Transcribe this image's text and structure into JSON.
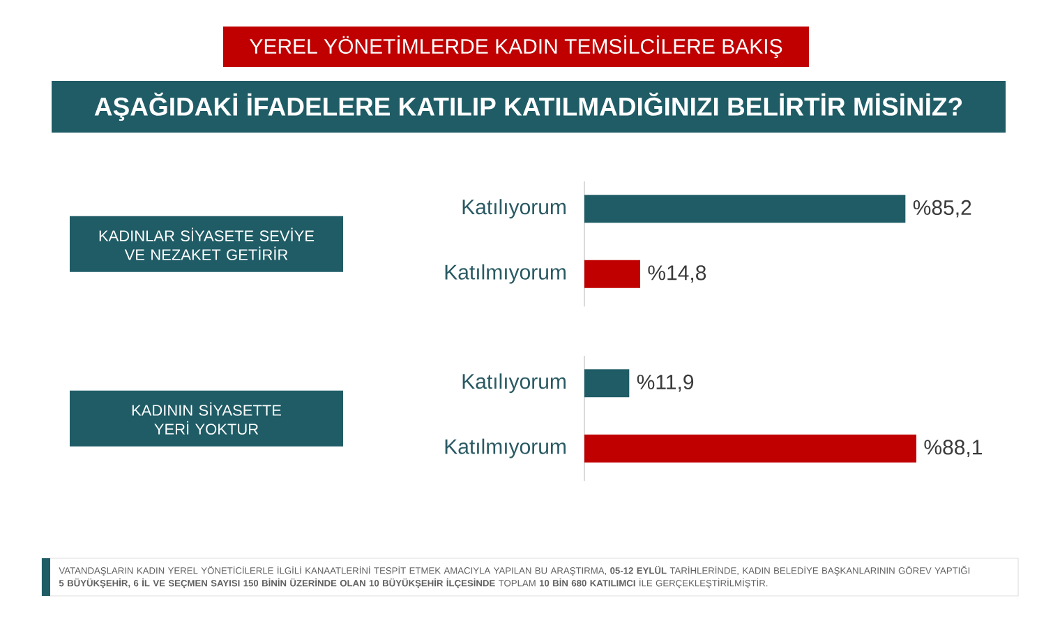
{
  "chart_data": [
    {
      "type": "bar",
      "orientation": "horizontal",
      "title": "YEREL YÖNETİMLERDE KADIN TEMSİLCİLERE BAKIŞ",
      "subtitle": "AŞAĞIDAKİ İFADELERE KATILIP KATILMADIĞINIZI BELİRTİR MİSİNİZ?",
      "ylabel": "KADINLAR SİYASETE SEVİYE VE NEZAKET GETİRİR",
      "categories": [
        "Katılıyorum",
        "Katılmıyorum"
      ],
      "values": [
        85.2,
        14.8
      ],
      "colors": [
        "#1f5c66",
        "#c00000"
      ],
      "value_labels": [
        "%85,2",
        "%14,8"
      ],
      "tick_labels": "y"
    },
    {
      "type": "bar",
      "orientation": "horizontal",
      "ylabel": "KADININ SİYASETTE YERİ YOKTUR",
      "categories": [
        "Katılıyorum",
        "Katılmıyorum"
      ],
      "values": [
        11.9,
        88.1
      ],
      "colors": [
        "#1f5c66",
        "#c00000"
      ],
      "value_labels": [
        "%11,9",
        "%88,1"
      ],
      "tick_labels": "y",
      "annotations": [
        "VATANDAŞLARIN KADIN YEREL YÖNETİCİLERLE İLGİLİ KANAATLERİNİ TESPİT ETMEK AMACIYLA YAPILAN BU ARAŞTIRMA, **05-12 EYLÜL** TARİHLERİNDE, KADIN BELEDİYE BAŞKANLARININ GÖREV YAPTIĞI **5 BÜYÜKŞEHİR, 6 İL VE SEÇMEN SAYISI 150 BİNİN ÜZERİNDE OLAN 10 BÜYÜKŞEHİR İLÇESİNDE** TOPLAM **10 BİN 680 KATILIMCI** İLE GERÇEKLEŞTİRİLMİŞTİR."
      ]
    }
  ]
}
